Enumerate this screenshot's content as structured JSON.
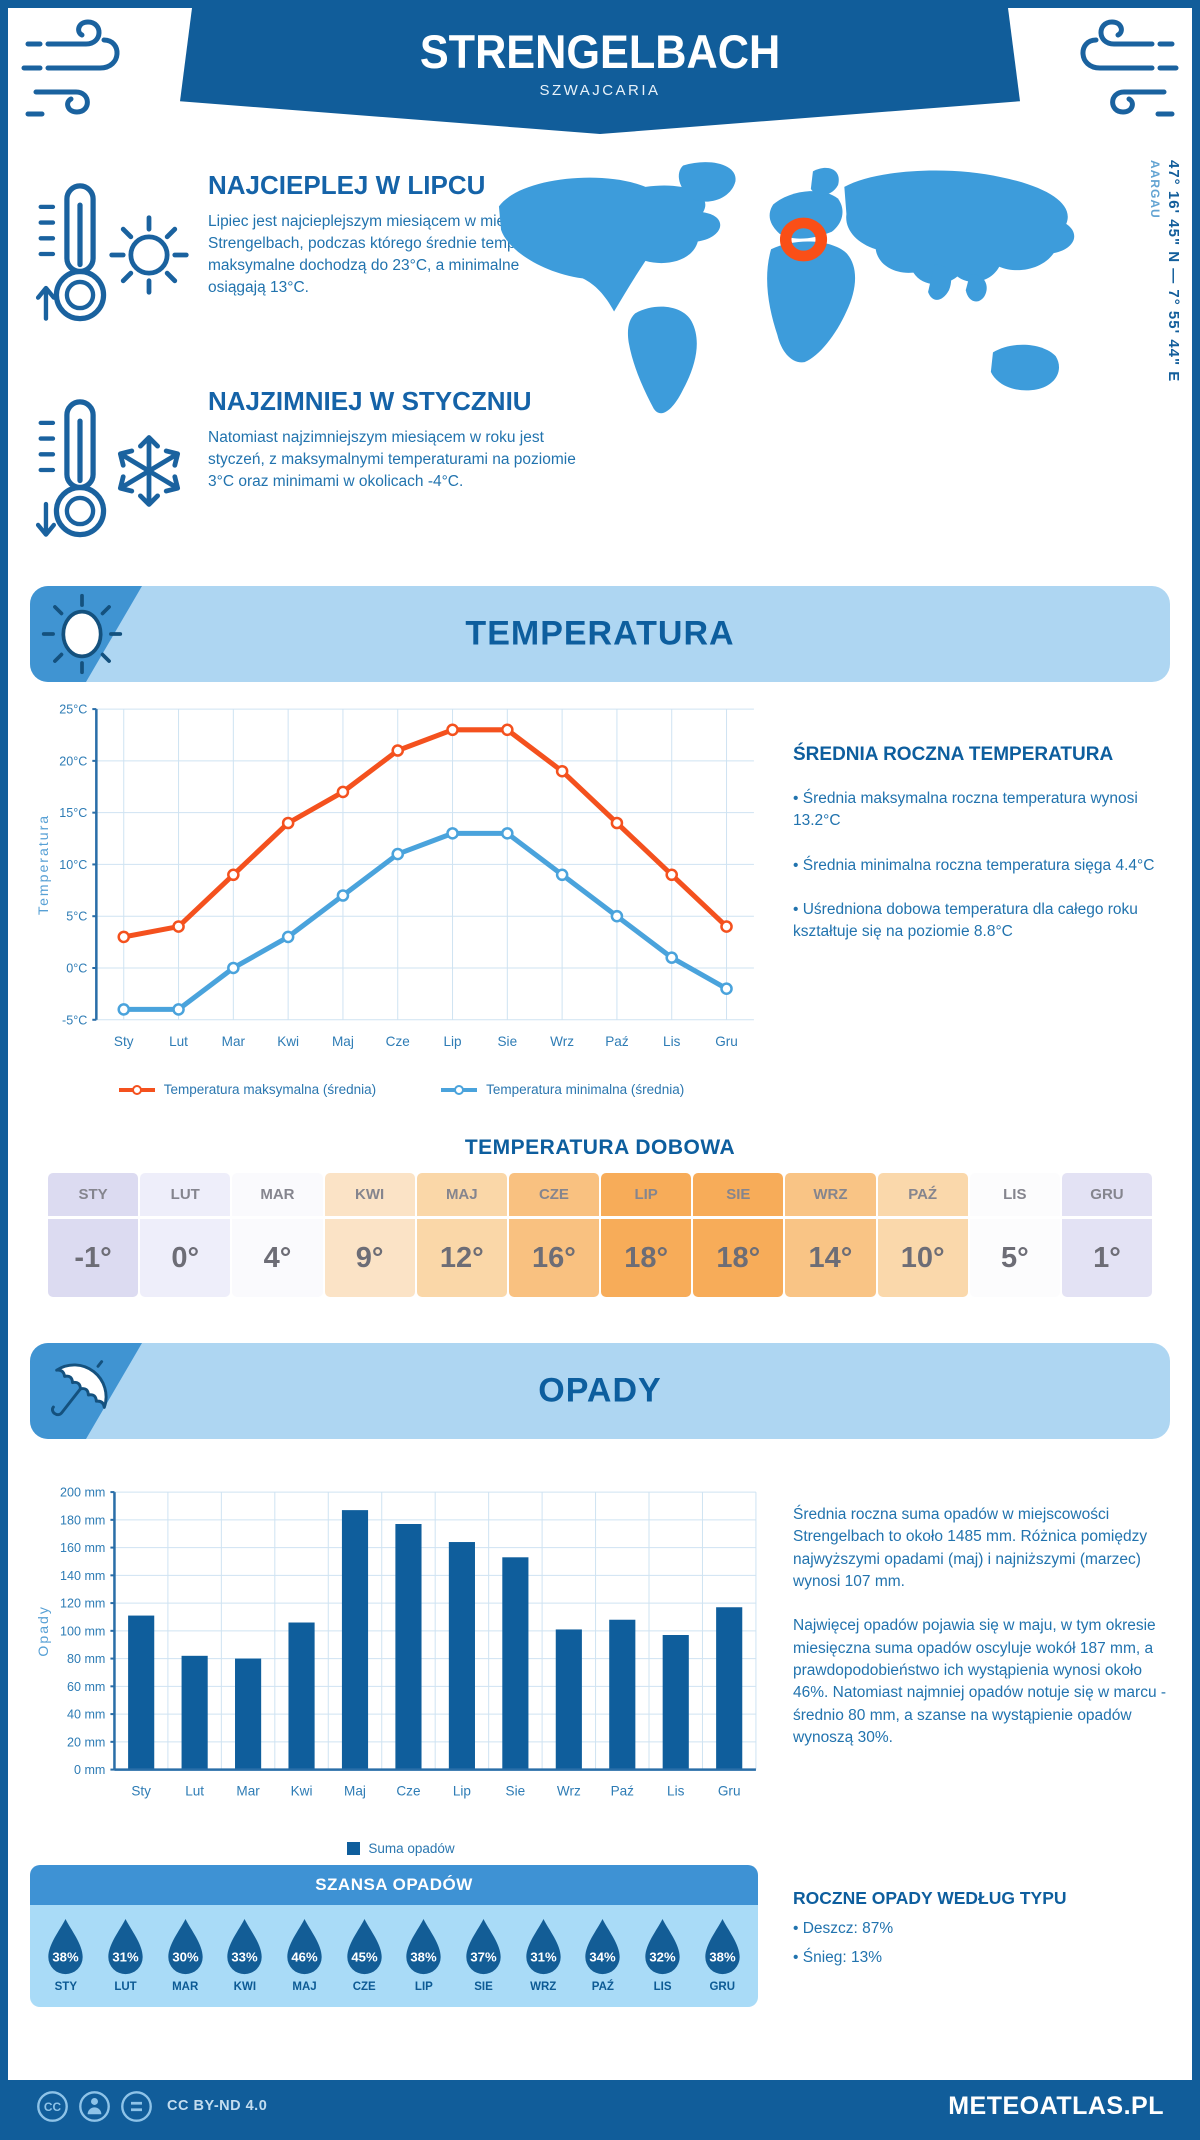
{
  "page": {
    "title": "STRENGELBACH",
    "subtitle": "SZWAJCARIA",
    "coords": "47° 16' 45\" N — 7° 55' 44\" E",
    "region": "AARGAU"
  },
  "highlights": [
    {
      "title": "NAJCIEPLEJ W LIPCU",
      "text": "Lipiec jest najcieplejszym miesiącem w miejscowości Strengelbach, podczas którego średnie temperatury maksymalne dochodzą do 23°C, a minimalne osiągają 13°C."
    },
    {
      "title": "NAJZIMNIEJ W STYCZNIU",
      "text": "Natomiast najzimniejszym miesiącem w roku jest styczeń, z maksymalnymi temperaturami na poziomie 3°C oraz minimami w okolicach -4°C."
    }
  ],
  "temperature_section": {
    "banner": "TEMPERATURA",
    "summary_title": "ŚREDNIA ROCZNA TEMPERATURA",
    "bullets": [
      "• Średnia maksymalna roczna temperatura wynosi 13.2°C",
      "• Średnia minimalna roczna temperatura sięga 4.4°C",
      "• Uśredniona dobowa temperatura dla całego roku kształtuje się na poziomie 8.8°C"
    ],
    "daily_title": "TEMPERATURA DOBOWA"
  },
  "daily_table": {
    "months": [
      "STY",
      "LUT",
      "MAR",
      "KWI",
      "MAJ",
      "CZE",
      "LIP",
      "SIE",
      "WRZ",
      "PAŹ",
      "LIS",
      "GRU"
    ],
    "values": [
      "-1°",
      "0°",
      "4°",
      "9°",
      "12°",
      "16°",
      "18°",
      "18°",
      "14°",
      "10°",
      "5°",
      "1°"
    ],
    "colors": [
      "#dcdbf1",
      "#eeeefa",
      "#fafafd",
      "#fbe3c6",
      "#fad7a8",
      "#f9c180",
      "#f7ac59",
      "#f7ac59",
      "#f9c485",
      "#fad8ab",
      "#fcfcfd",
      "#e3e2f4"
    ]
  },
  "precip_section": {
    "banner": "OPADY",
    "paragraphs": [
      "Średnia roczna suma opadów w miejscowości Strengelbach to około 1485 mm. Różnica pomiędzy najwyższymi opadami (maj) i najniższymi (marzec) wynosi 107 mm.",
      "Najwięcej opadów pojawia się w maju, w tym okresie miesięczna suma opadów oscyluje wokół 187 mm, a prawdopodobieństwo ich wystąpienia wynosi około 46%. Natomiast najmniej opadów notuje się w marcu - średnio 80 mm, a szanse na wystąpienie opadów wynoszą 30%."
    ],
    "type_title": "ROCZNE OPADY WEDŁUG TYPU",
    "type_bullets": [
      "• Deszcz: 87%",
      "• Śnieg: 13%"
    ]
  },
  "chance": {
    "title": "SZANSA OPADÓW",
    "months": [
      "STY",
      "LUT",
      "MAR",
      "KWI",
      "MAJ",
      "CZE",
      "LIP",
      "SIE",
      "WRZ",
      "PAŹ",
      "LIS",
      "GRU"
    ],
    "values": [
      "38%",
      "31%",
      "30%",
      "33%",
      "46%",
      "45%",
      "38%",
      "37%",
      "31%",
      "34%",
      "32%",
      "38%"
    ]
  },
  "chart_data": [
    {
      "type": "line",
      "categories": [
        "Sty",
        "Lut",
        "Mar",
        "Kwi",
        "Maj",
        "Cze",
        "Lip",
        "Sie",
        "Wrz",
        "Paź",
        "Lis",
        "Gru"
      ],
      "series": [
        {
          "name": "Temperatura maksymalna (średnia)",
          "color": "#f4511e",
          "values": [
            3,
            4,
            9,
            14,
            17,
            21,
            23,
            23,
            19,
            14,
            9,
            4
          ]
        },
        {
          "name": "Temperatura minimalna (średnia)",
          "color": "#4aa3dc",
          "values": [
            -4,
            -4,
            0,
            3,
            7,
            11,
            13,
            13,
            9,
            5,
            1,
            -2
          ]
        }
      ],
      "ylabel": "Temperatura",
      "ytick_suffix": "°C",
      "ylim": [
        -5,
        25
      ],
      "ystep": 5,
      "grid": true,
      "legend_position": "bottom"
    },
    {
      "type": "bar",
      "categories": [
        "Sty",
        "Lut",
        "Mar",
        "Kwi",
        "Maj",
        "Cze",
        "Lip",
        "Sie",
        "Wrz",
        "Paź",
        "Lis",
        "Gru"
      ],
      "series": [
        {
          "name": "Suma opadów",
          "color": "#0f5e9c",
          "values": [
            111,
            82,
            80,
            106,
            187,
            177,
            164,
            153,
            101,
            108,
            97,
            117
          ]
        }
      ],
      "ylabel": "Opady",
      "ytick_suffix": " mm",
      "ylim": [
        0,
        200
      ],
      "ystep": 20,
      "grid": true,
      "legend_position": "bottom"
    }
  ],
  "footer": {
    "license": "CC BY-ND 4.0",
    "brand": "METEOATLAS.PL"
  },
  "colors": {
    "primary": "#115d9a",
    "banner_bg": "#aed6f2",
    "banner_icon_bg": "#4094d2",
    "map": "#3d9cdb",
    "marker": "#fa4f17",
    "chance_header": "#3e92d4",
    "chance_bg": "#a9dbf7",
    "droplet": "#135d96"
  },
  "icons": [
    "wind-icon",
    "thermometer-up-icon",
    "sun-icon",
    "thermometer-down-icon",
    "snowflake-icon",
    "umbrella-icon",
    "map-marker-icon",
    "cc-icon",
    "cc-attribution-icon",
    "cc-nd-icon"
  ]
}
